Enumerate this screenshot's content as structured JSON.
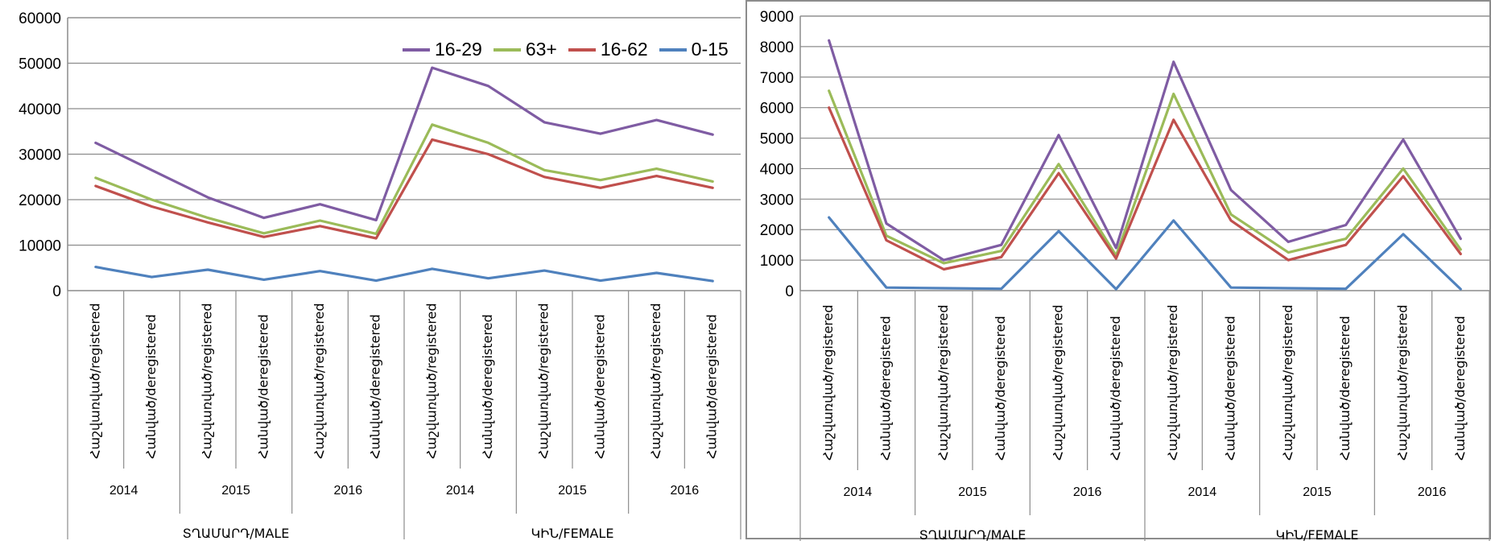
{
  "colors": {
    "purple": "#7f5ca3",
    "green": "#9bbb59",
    "red": "#c0504d",
    "blue": "#4f81bd",
    "grid": "#8c8c8c"
  },
  "chart_data": [
    {
      "type": "line",
      "y_ticks": [
        "0",
        "10000",
        "20000",
        "30000",
        "40000",
        "50000",
        "60000"
      ],
      "ylim": [
        0,
        60000
      ],
      "categories": [
        "Հաշվառված/registered",
        "Հանված/deregistered",
        "Հաշվառված/registered",
        "Հանված/deregistered",
        "Հաշվառված/registered",
        "Հանված/deregistered",
        "Հաշվառված/registered",
        "Հանված/deregistered",
        "Հաշվառված/registered",
        "Հանված/deregistered",
        "Հաշվառված/registered",
        "Հանված/deregistered"
      ],
      "years": [
        "2014",
        "2015",
        "2016",
        "2014",
        "2015",
        "2016"
      ],
      "genders": [
        "ՏՂԱՄԱՐԴ/MALE",
        "ԿԻՆ/FEMALE"
      ],
      "legend": [
        "16-29",
        "63+",
        "16-62",
        "0-15"
      ],
      "legend_position": "top-right",
      "grid": true,
      "series": [
        {
          "name": "16-29",
          "color": "#7f5ca3",
          "values": [
            32500,
            26500,
            20500,
            16000,
            19000,
            15500,
            49000,
            45000,
            37000,
            34500,
            37500,
            34300
          ]
        },
        {
          "name": "63+",
          "color": "#9bbb59",
          "values": [
            24800,
            20000,
            16000,
            12600,
            15400,
            12500,
            36500,
            32500,
            26500,
            24300,
            26800,
            24000
          ]
        },
        {
          "name": "16-62",
          "color": "#c0504d",
          "values": [
            23000,
            18500,
            15000,
            11800,
            14200,
            11500,
            33200,
            30000,
            25000,
            22600,
            25200,
            22600
          ]
        },
        {
          "name": "0-15",
          "color": "#4f81bd",
          "values": [
            5200,
            3000,
            4600,
            2400,
            4300,
            2200,
            4800,
            2700,
            4400,
            2200,
            3900,
            2100
          ]
        }
      ]
    },
    {
      "type": "line",
      "y_ticks": [
        "0",
        "1000",
        "2000",
        "3000",
        "4000",
        "5000",
        "6000",
        "7000",
        "8000",
        "9000"
      ],
      "ylim": [
        0,
        9000
      ],
      "categories": [
        "Հաշվառված/registered",
        "Հանված/deregistered",
        "Հաշվառված/registered",
        "Հանված/deregistered",
        "Հաշվառված/registered",
        "Հանված/deregistered",
        "Հաշվառված/registered",
        "Հանված/deregistered",
        "Հաշվառված/registered",
        "Հանված/deregistered",
        "Հաշվառված/registered",
        "Հանված/deregistered"
      ],
      "years": [
        "2014",
        "2015",
        "2016",
        "2014",
        "2015",
        "2016"
      ],
      "genders": [
        "ՏՂԱՄԱՐԴ/MALE",
        "ԿԻՆ/FEMALE"
      ],
      "grid": true,
      "series": [
        {
          "color": "#7f5ca3",
          "values": [
            8200,
            2200,
            1000,
            1500,
            5100,
            1400,
            7500,
            3300,
            1600,
            2150,
            4950,
            1700
          ]
        },
        {
          "color": "#9bbb59",
          "values": [
            6550,
            1800,
            900,
            1300,
            4150,
            1150,
            6450,
            2500,
            1250,
            1700,
            4000,
            1350
          ]
        },
        {
          "color": "#c0504d",
          "values": [
            6000,
            1650,
            700,
            1100,
            3850,
            1050,
            5600,
            2300,
            1000,
            1500,
            3750,
            1200
          ]
        },
        {
          "color": "#4f81bd",
          "values": [
            2400,
            100,
            80,
            60,
            1950,
            50,
            2300,
            100,
            80,
            60,
            1850,
            50
          ]
        }
      ]
    }
  ]
}
